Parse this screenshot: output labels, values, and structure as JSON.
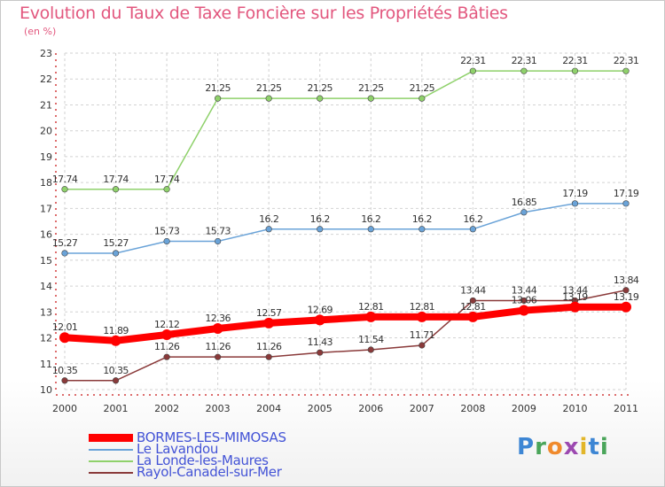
{
  "header": {
    "title": "Evolution du Taux de Taxe Foncière sur les Propriétés Bâties",
    "unit": "(en %)"
  },
  "logo": {
    "letters": [
      "P",
      "r",
      "o",
      "x",
      "i",
      "t",
      "i"
    ],
    "colors": [
      "#3d86d4",
      "#4aa55a",
      "#f08a2c",
      "#9c49b0",
      "#e2b62a",
      "#3d86d4",
      "#4aa55a"
    ]
  },
  "colors": {
    "accent": "#e2577e",
    "legend_text": "#4353d6"
  },
  "chart_data": {
    "type": "line",
    "title": "Evolution du Taux de Taxe Foncière sur les Propriétés Bâties",
    "ylabel": "(en %)",
    "x": [
      "2000",
      "2001",
      "2002",
      "2003",
      "2004",
      "2005",
      "2006",
      "2007",
      "2008",
      "2009",
      "2010",
      "2011"
    ],
    "ylim": [
      10,
      23
    ],
    "yticks": [
      "10",
      "11",
      "12",
      "13",
      "14",
      "15",
      "16",
      "17",
      "18",
      "19",
      "20",
      "21",
      "22",
      "23"
    ],
    "grid": true,
    "legend_position": "bottom-left",
    "series": [
      {
        "name": "BORMES-LES-MIMOSAS",
        "values": [
          12.01,
          11.89,
          12.12,
          12.36,
          12.57,
          12.69,
          12.81,
          12.81,
          12.81,
          13.06,
          13.19,
          13.19
        ],
        "labels": [
          "12.01",
          "11.89",
          "12.12",
          "12.36",
          "12.57",
          "12.69",
          "12.81",
          "12.81",
          "12.81",
          "13.06",
          "13.19",
          "13.19"
        ],
        "color": "#ff0000",
        "style": "thick"
      },
      {
        "name": "Le Lavandou",
        "values": [
          15.27,
          15.27,
          15.73,
          15.73,
          16.2,
          16.2,
          16.2,
          16.2,
          16.2,
          16.85,
          17.19,
          17.19
        ],
        "labels": [
          "15.27",
          "15.27",
          "15.73",
          "15.73",
          "16.2",
          "16.2",
          "16.2",
          "16.2",
          "16.2",
          "16.85",
          "17.19",
          "17.19"
        ],
        "color": "#6aa3d8",
        "style": "thin"
      },
      {
        "name": "La Londe-les-Maures",
        "values": [
          17.74,
          17.74,
          17.74,
          21.25,
          21.25,
          21.25,
          21.25,
          21.25,
          22.31,
          22.31,
          22.31,
          22.31
        ],
        "labels": [
          "17.74",
          "17.74",
          "17.74",
          "21.25",
          "21.25",
          "21.25",
          "21.25",
          "21.25",
          "22.31",
          "22.31",
          "22.31",
          "22.31"
        ],
        "color": "#8fd16b",
        "style": "thin"
      },
      {
        "name": "Rayol-Canadel-sur-Mer",
        "values": [
          10.35,
          10.35,
          11.26,
          11.26,
          11.26,
          11.43,
          11.54,
          11.71,
          13.44,
          13.44,
          13.44,
          13.84
        ],
        "labels": [
          "10.35",
          "10.35",
          "11.26",
          "11.26",
          "11.26",
          "11.43",
          "11.54",
          "11.71",
          "13.44",
          "13.44",
          "13.44",
          "13.84"
        ],
        "color": "#8a3a3a",
        "style": "thin"
      }
    ]
  }
}
